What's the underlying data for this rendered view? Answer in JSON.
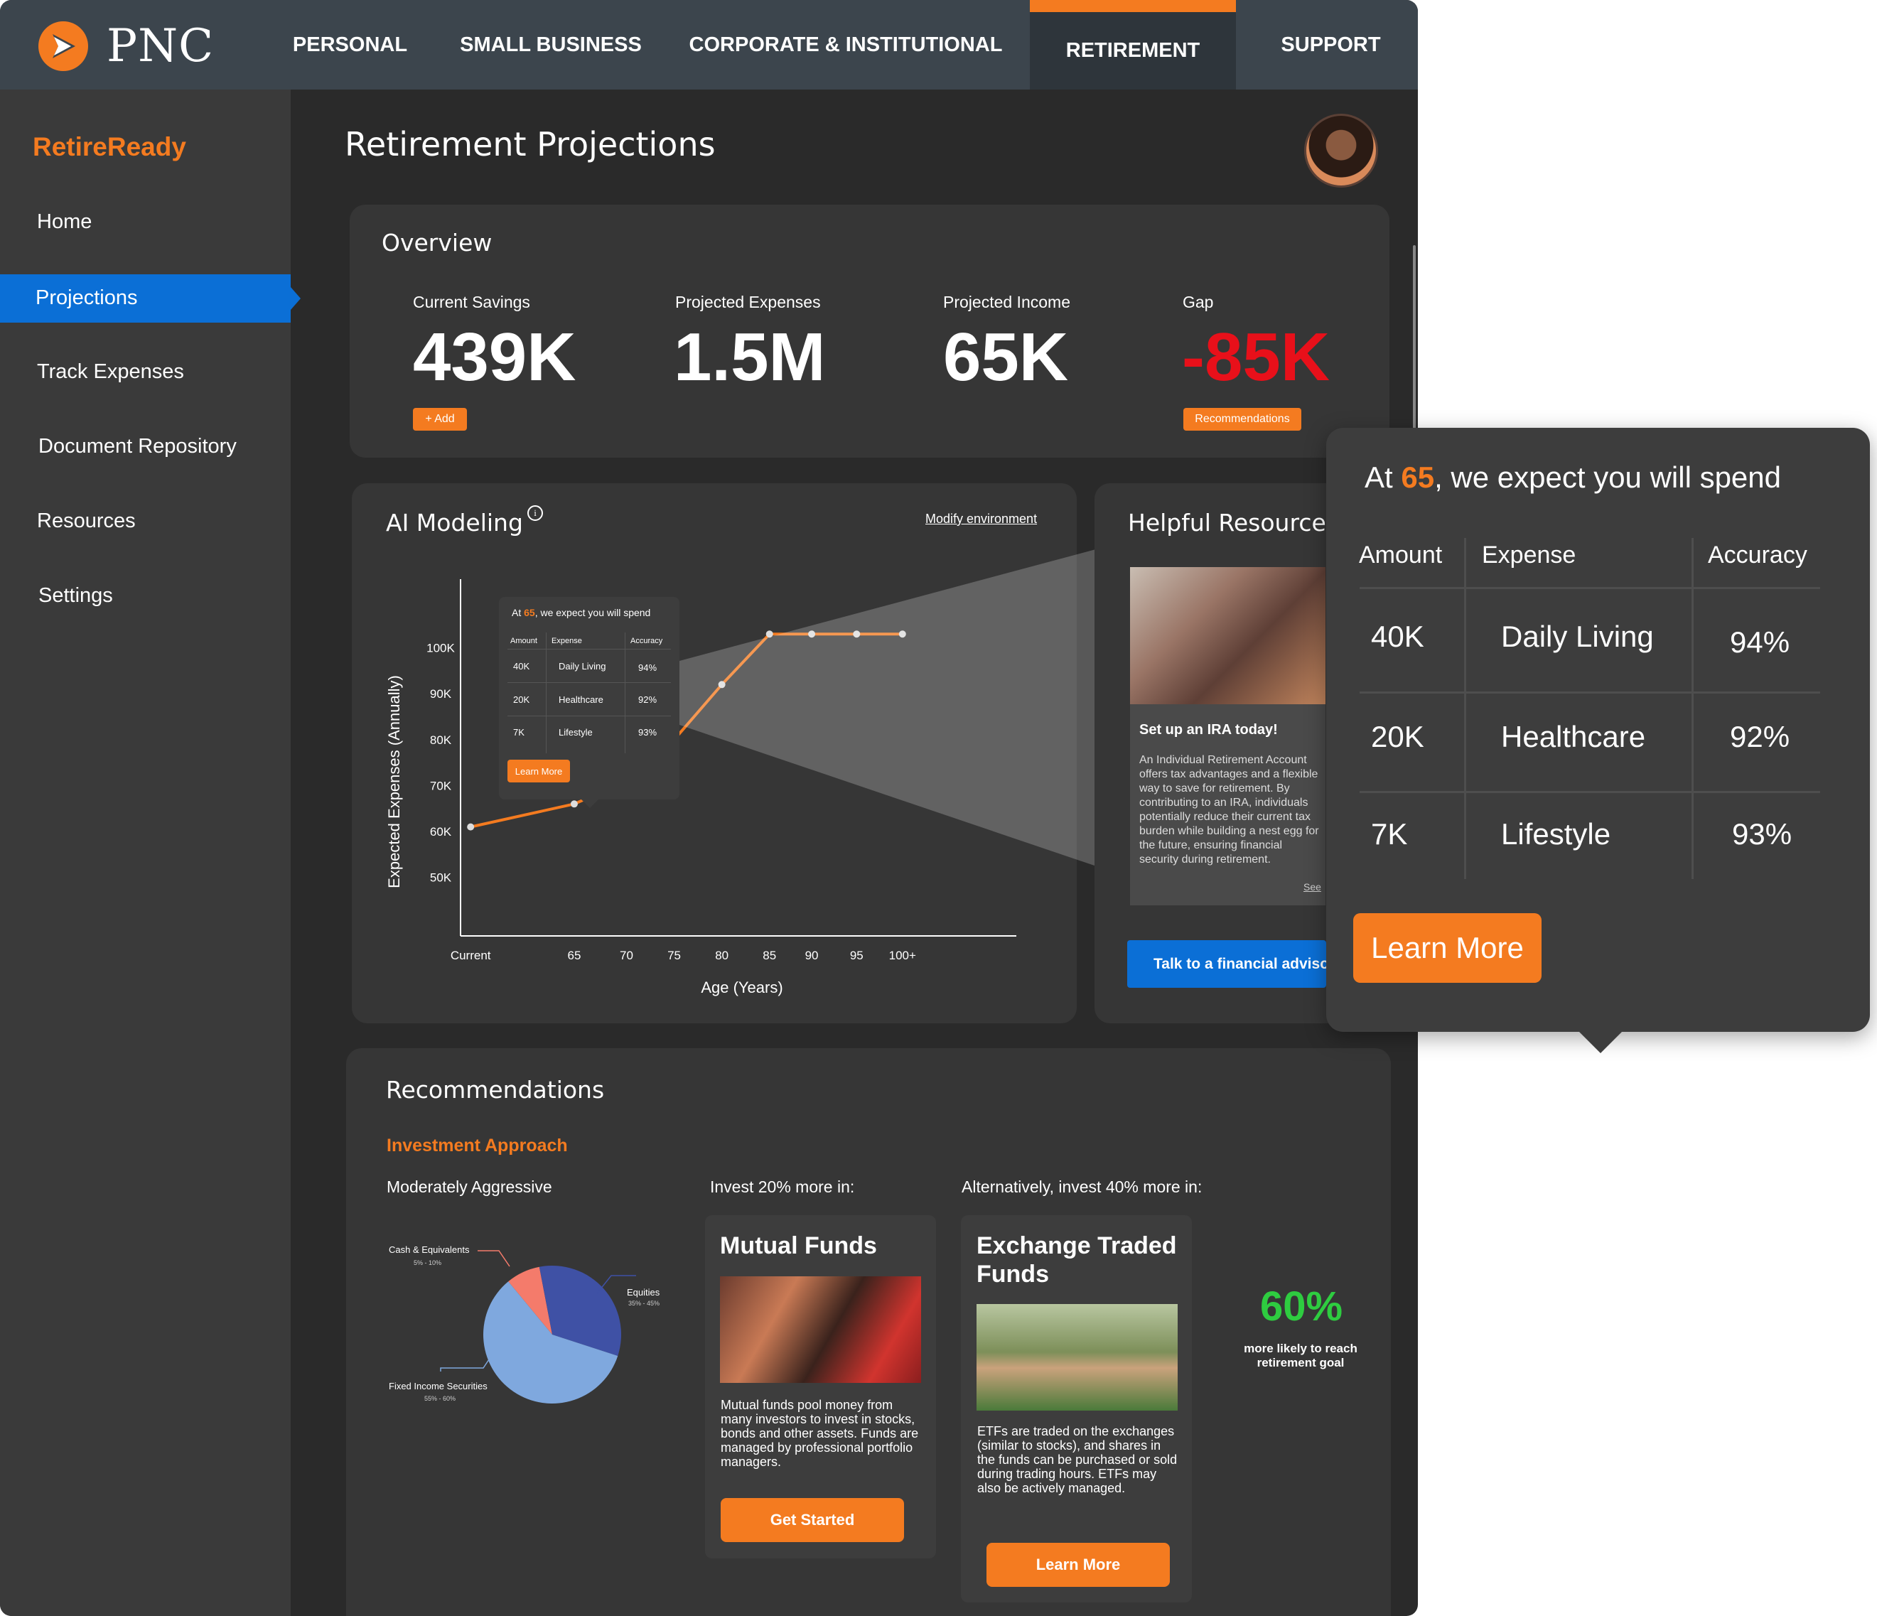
{
  "header": {
    "brand": "PNC",
    "nav": [
      "PERSONAL",
      "SMALL BUSINESS",
      "CORPORATE & INSTITUTIONAL",
      "RETIREMENT",
      "SUPPORT"
    ]
  },
  "sidebar": {
    "brand": "RetireReady",
    "items": [
      {
        "label": "Home"
      },
      {
        "label": "Projections"
      },
      {
        "label": "Track Expenses"
      },
      {
        "label": "Document Repository"
      },
      {
        "label": "Resources"
      },
      {
        "label": "Settings"
      }
    ]
  },
  "page": {
    "title": "Retirement Projections"
  },
  "overview": {
    "title": "Overview",
    "stats": [
      {
        "label": "Current Savings",
        "value": "439K"
      },
      {
        "label": "Projected Expenses",
        "value": "1.5M"
      },
      {
        "label": "Projected Income",
        "value": "65K"
      },
      {
        "label": "Gap",
        "value": "-85K"
      }
    ],
    "add_label": "+ Add",
    "recommendations_label": "Recommendations",
    "gap_color": "#e8101a"
  },
  "ai_modeling": {
    "title": "AI Modeling",
    "info_icon": "info-icon",
    "modify_label": "Modify environment",
    "tooltip": {
      "prefix": "At ",
      "age": "65",
      "suffix": ", we expect you will spend",
      "headers": [
        "Amount",
        "Expense",
        "Accuracy"
      ],
      "rows": [
        {
          "amount": "40K",
          "expense": "Daily Living",
          "accuracy": "94%"
        },
        {
          "amount": "20K",
          "expense": "Healthcare",
          "accuracy": "92%"
        },
        {
          "amount": "7K",
          "expense": "Lifestyle",
          "accuracy": "93%"
        }
      ],
      "button": "Learn More"
    }
  },
  "chart_data": {
    "type": "line",
    "categories": [
      "Current",
      "65",
      "70",
      "75",
      "80",
      "85",
      "90",
      "95",
      "100+"
    ],
    "series": [
      {
        "values": [
          61,
          66,
          71,
          80,
          92,
          103,
          103,
          103,
          103
        ]
      }
    ],
    "ylabel": "Expected Expenses (Annually)",
    "xlabel": "Age (Years)",
    "yticks": [
      "100K",
      "90K",
      "80K",
      "70K",
      "60K",
      "50K"
    ],
    "ytick_values": [
      100,
      90,
      80,
      70,
      60,
      50
    ],
    "ylim": [
      45,
      110
    ],
    "line_color": "#f47b20"
  },
  "resources": {
    "title": "Helpful Resources",
    "card_title": "Set up an IRA today!",
    "card_text": "An Individual Retirement Account offers tax advantages and a flexible way to save for retirement. By contributing to an IRA, individuals potentially reduce their current tax burden while building a nest egg for the future, ensuring financial security during retirement.",
    "see_more": "See",
    "advisor_button": "Talk to a financial advisor"
  },
  "zoom_tooltip": {
    "prefix": "At ",
    "age": "65",
    "suffix": ", we expect you will spend",
    "headers": [
      "Amount",
      "Expense",
      "Accuracy"
    ],
    "rows": [
      {
        "amount": "40K",
        "expense": "Daily Living",
        "accuracy": "94%"
      },
      {
        "amount": "20K",
        "expense": "Healthcare",
        "accuracy": "92%"
      },
      {
        "amount": "7K",
        "expense": "Lifestyle",
        "accuracy": "93%"
      }
    ],
    "button": "Learn More"
  },
  "recommendations": {
    "title": "Recommendations",
    "subtitle": "Investment Approach",
    "approach": "Moderately Aggressive",
    "invest_20": "Invest 20% more in:",
    "invest_40": "Alternatively, invest 40% more in:",
    "pie": {
      "slices": [
        {
          "label": "Cash & Equivalents",
          "range": "5% - 10%",
          "value": 8,
          "color": "#f47b6b"
        },
        {
          "label": "Equities",
          "range": "35% - 45%",
          "value": 33,
          "color": "#3f51a5"
        },
        {
          "label": "Fixed Income Securities",
          "range": "55% - 60%",
          "value": 59,
          "color": "#7fa8de"
        }
      ]
    },
    "mutual_funds": {
      "title": "Mutual Funds",
      "text": "Mutual funds pool money from many investors to invest in stocks, bonds and other assets. Funds are managed by professional portfolio managers.",
      "button": "Get Started"
    },
    "etf": {
      "title": "Exchange Traded Funds",
      "text": "ETFs are traded on the exchanges (similar to stocks), and shares in the funds can be purchased or sold during trading hours. ETFs may also be actively managed.",
      "button": "Learn More"
    },
    "likelihood_value": "60%",
    "likelihood_text": "more likely to reach retirement goal"
  }
}
